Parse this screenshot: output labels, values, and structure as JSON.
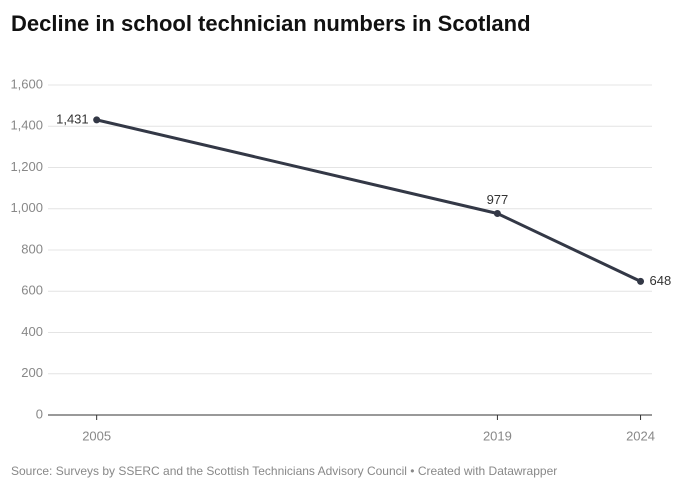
{
  "chart_data": {
    "type": "line",
    "title": "Decline in school technician numbers in Scotland",
    "x": [
      2005,
      2019,
      2024
    ],
    "values": [
      1431,
      977,
      648
    ],
    "value_labels": [
      "1,431",
      "977",
      "648"
    ],
    "color": "#333846",
    "xlim": [
      2003.3,
      2024.4
    ],
    "xticks": [
      2005,
      2019,
      2024
    ],
    "ylim": [
      0,
      1600
    ],
    "yticks": [
      0,
      200,
      400,
      600,
      800,
      {
        "value": 1000,
        "label": "1,000"
      },
      {
        "value": 1200,
        "label": "1,200"
      },
      {
        "value": 1400,
        "label": "1,400"
      },
      {
        "value": 1600,
        "label": "1,600"
      }
    ],
    "grid": true,
    "source": "Source: Surveys by SSERC and the Scottish Technicians Advisory Council • Created with Datawrapper"
  }
}
